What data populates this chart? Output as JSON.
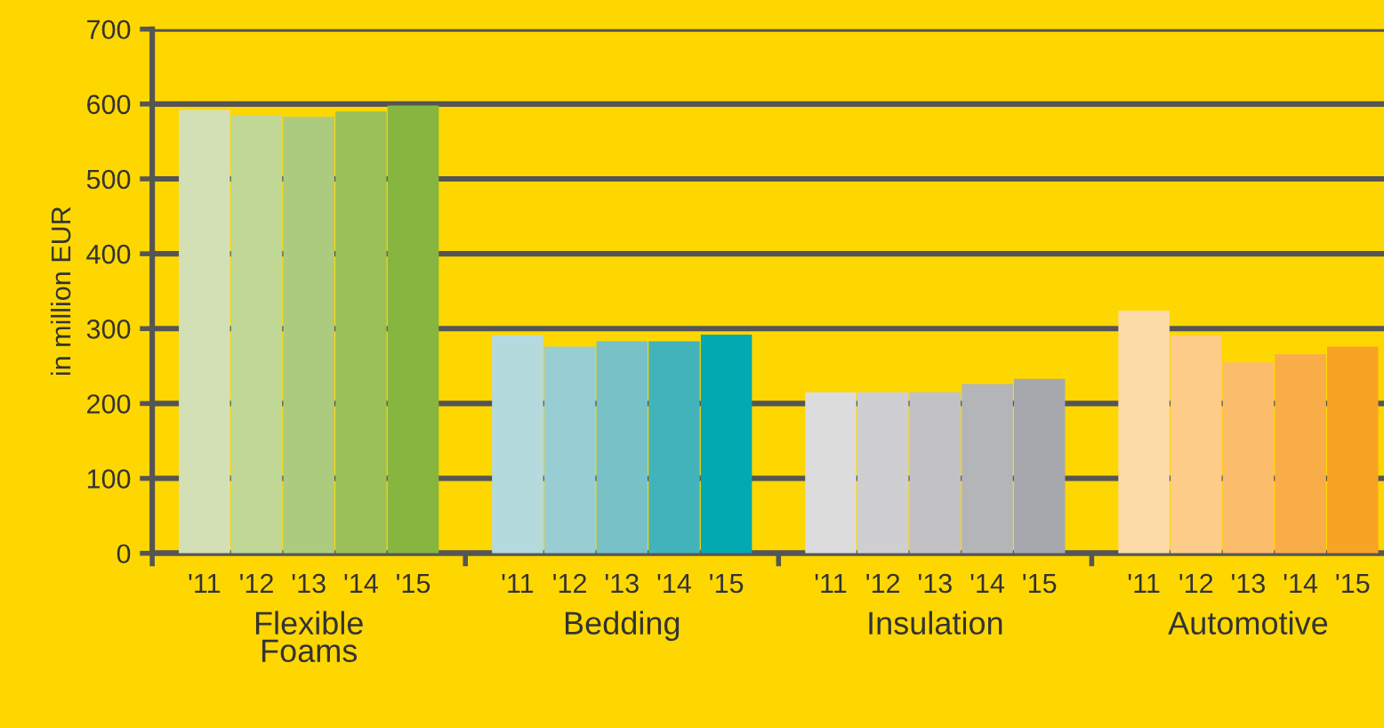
{
  "chart_data": {
    "type": "bar",
    "ylabel": "in million EUR",
    "categories": [
      "'11",
      "'12",
      "'13",
      "'14",
      "'15",
      "'11",
      "'12",
      "'13",
      "'14",
      "'15",
      "'11",
      "'12",
      "'13",
      "'14",
      "'15",
      "'11",
      "'12",
      "'13",
      "'14",
      "'15"
    ],
    "values": [
      592,
      585,
      583,
      590,
      598,
      291,
      276,
      283,
      283,
      292,
      215,
      215,
      215,
      226,
      233,
      324,
      291,
      255,
      266,
      276
    ],
    "colors": [
      "#d3e0b6",
      "#c0d796",
      "#adcb7e",
      "#9bc05a",
      "#86b63f",
      "#b5dade",
      "#98cdd3",
      "#78c1c7",
      "#42b3ba",
      "#03a9b0",
      "#dcdcdd",
      "#cfcfd1",
      "#c2c2c5",
      "#b4b5b8",
      "#a6a8ad",
      "#fddba8",
      "#fccc88",
      "#fbbd6b",
      "#f9ad48",
      "#f7a323"
    ],
    "annotations": [
      "Flexible Foams",
      "Bedding",
      "Insulation",
      "Automotive"
    ],
    "ylim": [
      0,
      700
    ],
    "yticks": [
      0,
      100,
      200,
      300,
      400,
      500,
      600,
      700
    ],
    "grid": "y"
  }
}
